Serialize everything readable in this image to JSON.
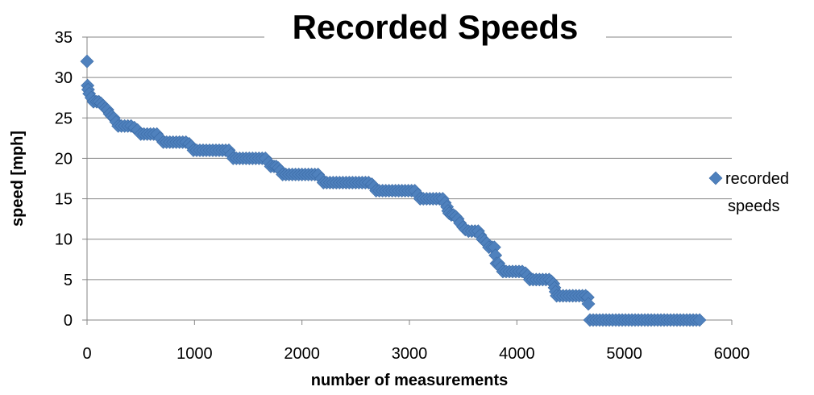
{
  "chart_data": {
    "type": "scatter",
    "title": "Recorded Speeds",
    "xlabel": "number of measurements",
    "ylabel": "speed [mph]",
    "xlim": [
      0,
      6000
    ],
    "ylim": [
      0,
      35
    ],
    "xticks": [
      0,
      1000,
      2000,
      3000,
      4000,
      5000,
      6000
    ],
    "yticks": [
      0,
      5,
      10,
      15,
      20,
      25,
      30,
      35
    ],
    "grid": "horizontal",
    "legend_position": "right",
    "series": [
      {
        "name": "recorded speeds",
        "color": "#4F81BD",
        "marker": "diamond",
        "points": [
          [
            0,
            32
          ],
          [
            5,
            29
          ],
          [
            10,
            28.5
          ],
          [
            20,
            28
          ],
          [
            40,
            27.5
          ],
          [
            60,
            27
          ],
          [
            90,
            27
          ],
          [
            110,
            27
          ],
          [
            130,
            26.8
          ],
          [
            150,
            26.5
          ],
          [
            170,
            26.2
          ],
          [
            190,
            26
          ],
          [
            210,
            25.5
          ],
          [
            230,
            25.2
          ],
          [
            250,
            25
          ],
          [
            270,
            24.5
          ],
          [
            290,
            24
          ],
          [
            320,
            24
          ],
          [
            350,
            24
          ],
          [
            380,
            24
          ],
          [
            410,
            24
          ],
          [
            440,
            23.8
          ],
          [
            470,
            23.5
          ],
          [
            500,
            23
          ],
          [
            530,
            23
          ],
          [
            560,
            23
          ],
          [
            590,
            23
          ],
          [
            620,
            23
          ],
          [
            650,
            23
          ],
          [
            680,
            22.5
          ],
          [
            710,
            22
          ],
          [
            740,
            22
          ],
          [
            770,
            22
          ],
          [
            800,
            22
          ],
          [
            830,
            22
          ],
          [
            860,
            22
          ],
          [
            890,
            22
          ],
          [
            920,
            22
          ],
          [
            950,
            21.8
          ],
          [
            970,
            21.5
          ],
          [
            990,
            21
          ],
          [
            1020,
            21
          ],
          [
            1050,
            21
          ],
          [
            1080,
            21
          ],
          [
            1110,
            21
          ],
          [
            1140,
            21
          ],
          [
            1170,
            21
          ],
          [
            1200,
            21
          ],
          [
            1230,
            21
          ],
          [
            1260,
            21
          ],
          [
            1290,
            21
          ],
          [
            1320,
            21
          ],
          [
            1340,
            20.5
          ],
          [
            1360,
            20
          ],
          [
            1390,
            20
          ],
          [
            1420,
            20
          ],
          [
            1450,
            20
          ],
          [
            1480,
            20
          ],
          [
            1510,
            20
          ],
          [
            1540,
            20
          ],
          [
            1570,
            20
          ],
          [
            1600,
            20
          ],
          [
            1630,
            20
          ],
          [
            1660,
            20
          ],
          [
            1690,
            19.5
          ],
          [
            1710,
            19
          ],
          [
            1740,
            19
          ],
          [
            1760,
            19
          ],
          [
            1780,
            18.8
          ],
          [
            1800,
            18.5
          ],
          [
            1820,
            18
          ],
          [
            1850,
            18
          ],
          [
            1880,
            18
          ],
          [
            1910,
            18
          ],
          [
            1940,
            18
          ],
          [
            1970,
            18
          ],
          [
            2000,
            18
          ],
          [
            2030,
            18
          ],
          [
            2060,
            18
          ],
          [
            2090,
            18
          ],
          [
            2120,
            18
          ],
          [
            2150,
            18
          ],
          [
            2180,
            17.5
          ],
          [
            2200,
            17
          ],
          [
            2230,
            17
          ],
          [
            2260,
            17
          ],
          [
            2290,
            17
          ],
          [
            2320,
            17
          ],
          [
            2350,
            17
          ],
          [
            2380,
            17
          ],
          [
            2410,
            17
          ],
          [
            2440,
            17
          ],
          [
            2470,
            17
          ],
          [
            2500,
            17
          ],
          [
            2530,
            17
          ],
          [
            2560,
            17
          ],
          [
            2590,
            17
          ],
          [
            2620,
            17
          ],
          [
            2650,
            16.8
          ],
          [
            2670,
            16.5
          ],
          [
            2690,
            16
          ],
          [
            2720,
            16
          ],
          [
            2750,
            16
          ],
          [
            2780,
            16
          ],
          [
            2810,
            16
          ],
          [
            2840,
            16
          ],
          [
            2870,
            16
          ],
          [
            2900,
            16
          ],
          [
            2930,
            16
          ],
          [
            2960,
            16
          ],
          [
            2990,
            16
          ],
          [
            3020,
            16
          ],
          [
            3050,
            16
          ],
          [
            3080,
            15.5
          ],
          [
            3100,
            15
          ],
          [
            3130,
            15
          ],
          [
            3160,
            15
          ],
          [
            3190,
            15
          ],
          [
            3220,
            15
          ],
          [
            3250,
            15
          ],
          [
            3280,
            15
          ],
          [
            3310,
            15
          ],
          [
            3330,
            14.5
          ],
          [
            3350,
            14
          ],
          [
            3360,
            13.5
          ],
          [
            3370,
            13.2
          ],
          [
            3390,
            13
          ],
          [
            3410,
            13
          ],
          [
            3430,
            12.8
          ],
          [
            3450,
            12.5
          ],
          [
            3470,
            12
          ],
          [
            3500,
            11.5
          ],
          [
            3520,
            11.2
          ],
          [
            3550,
            11
          ],
          [
            3580,
            11
          ],
          [
            3610,
            11
          ],
          [
            3640,
            11
          ],
          [
            3660,
            10.5
          ],
          [
            3680,
            10
          ],
          [
            3700,
            9.8
          ],
          [
            3720,
            9.5
          ],
          [
            3740,
            9
          ],
          [
            3770,
            9
          ],
          [
            3790,
            9
          ],
          [
            3800,
            8
          ],
          [
            3810,
            7
          ],
          [
            3830,
            7
          ],
          [
            3850,
            6.5
          ],
          [
            3870,
            6
          ],
          [
            3900,
            6
          ],
          [
            3930,
            6
          ],
          [
            3960,
            6
          ],
          [
            3990,
            6
          ],
          [
            4020,
            6
          ],
          [
            4050,
            6
          ],
          [
            4080,
            5.8
          ],
          [
            4100,
            5.5
          ],
          [
            4120,
            5
          ],
          [
            4150,
            5
          ],
          [
            4180,
            5
          ],
          [
            4210,
            5
          ],
          [
            4240,
            5
          ],
          [
            4270,
            5
          ],
          [
            4300,
            5
          ],
          [
            4320,
            4.8
          ],
          [
            4340,
            4.5
          ],
          [
            4350,
            4
          ],
          [
            4360,
            3.5
          ],
          [
            4370,
            3
          ],
          [
            4400,
            3
          ],
          [
            4430,
            3
          ],
          [
            4460,
            3
          ],
          [
            4490,
            3
          ],
          [
            4520,
            3
          ],
          [
            4550,
            3
          ],
          [
            4580,
            3
          ],
          [
            4610,
            3
          ],
          [
            4640,
            3
          ],
          [
            4660,
            2.8
          ],
          [
            4665,
            2
          ],
          [
            4680,
            0
          ],
          [
            4710,
            0
          ],
          [
            4740,
            0
          ],
          [
            4770,
            0
          ],
          [
            4800,
            0
          ],
          [
            4830,
            0
          ],
          [
            4860,
            0
          ],
          [
            4890,
            0
          ],
          [
            4920,
            0
          ],
          [
            4950,
            0
          ],
          [
            4980,
            0
          ],
          [
            5010,
            0
          ],
          [
            5040,
            0
          ],
          [
            5070,
            0
          ],
          [
            5100,
            0
          ],
          [
            5130,
            0
          ],
          [
            5160,
            0
          ],
          [
            5190,
            0
          ],
          [
            5220,
            0
          ],
          [
            5250,
            0
          ],
          [
            5280,
            0
          ],
          [
            5310,
            0
          ],
          [
            5340,
            0
          ],
          [
            5370,
            0
          ],
          [
            5400,
            0
          ],
          [
            5430,
            0
          ],
          [
            5460,
            0
          ],
          [
            5490,
            0
          ],
          [
            5520,
            0
          ],
          [
            5550,
            0
          ],
          [
            5580,
            0
          ],
          [
            5610,
            0
          ],
          [
            5640,
            0
          ],
          [
            5670,
            0
          ],
          [
            5700,
            0
          ]
        ]
      }
    ]
  }
}
